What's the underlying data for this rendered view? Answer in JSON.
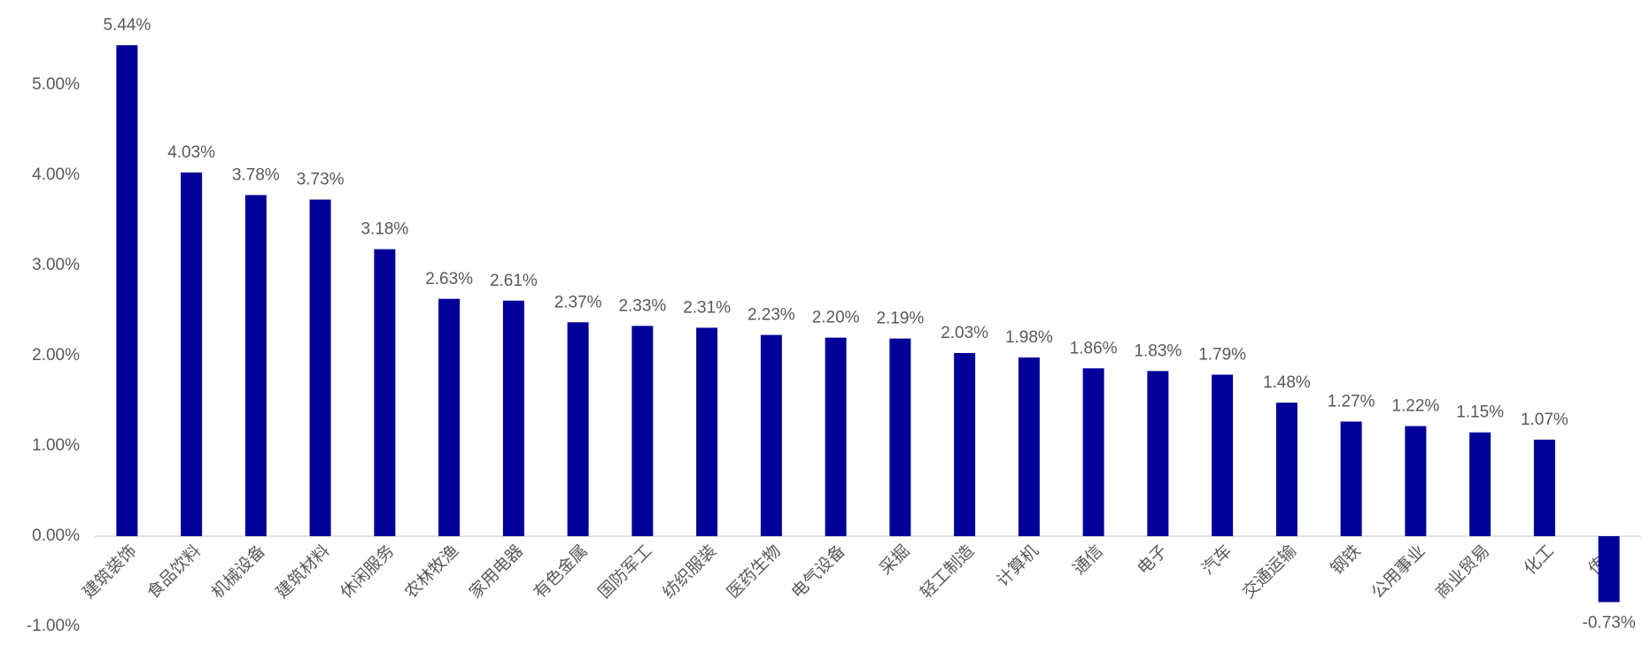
{
  "chart_data": {
    "type": "bar",
    "categories": [
      "建筑装饰",
      "食品饮料",
      "机械设备",
      "建筑材料",
      "休闲服务",
      "农林牧渔",
      "家用电器",
      "有色金属",
      "国防军工",
      "纺织服装",
      "医药生物",
      "电气设备",
      "采掘",
      "轻工制造",
      "计算机",
      "通信",
      "电子",
      "汽车",
      "交通运输",
      "钢铁",
      "公用事业",
      "商业贸易",
      "化工",
      "传媒"
    ],
    "values": [
      5.44,
      4.03,
      3.78,
      3.73,
      3.18,
      2.63,
      2.61,
      2.37,
      2.33,
      2.31,
      2.23,
      2.2,
      2.19,
      2.03,
      1.98,
      1.86,
      1.83,
      1.79,
      1.48,
      1.27,
      1.22,
      1.15,
      1.07,
      -0.73
    ],
    "value_labels": [
      "5.44%",
      "4.03%",
      "3.78%",
      "3.73%",
      "3.18%",
      "2.63%",
      "2.61%",
      "2.37%",
      "2.33%",
      "2.31%",
      "2.23%",
      "2.20%",
      "2.19%",
      "2.03%",
      "1.98%",
      "1.86%",
      "1.83%",
      "1.79%",
      "1.48%",
      "1.27%",
      "1.22%",
      "1.15%",
      "1.07%",
      "-0.73%"
    ],
    "color": "#000099",
    "ylim": [
      -1,
      5.5
    ],
    "yticks": [
      {
        "value": -1,
        "label": "-1.00%"
      },
      {
        "value": 0,
        "label": "0.00%"
      },
      {
        "value": 1,
        "label": "1.00%"
      },
      {
        "value": 2,
        "label": "2.00%"
      },
      {
        "value": 3,
        "label": "3.00%"
      },
      {
        "value": 4,
        "label": "4.00%"
      },
      {
        "value": 5,
        "label": "5.00%"
      }
    ],
    "grid": false
  }
}
